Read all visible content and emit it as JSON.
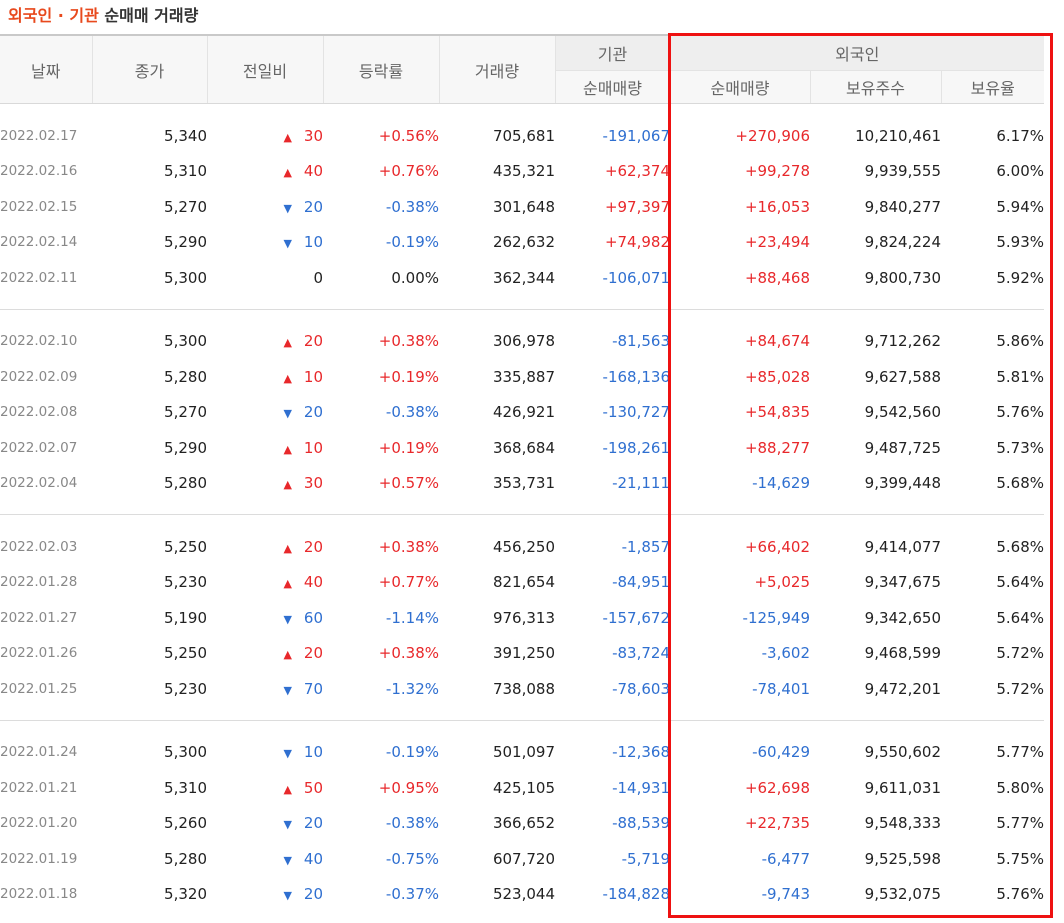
{
  "title": {
    "part1": "외국인 · 기관",
    "part2": "순매매 거래량"
  },
  "headers": {
    "date": "날짜",
    "close": "종가",
    "change": "전일비",
    "rate": "등락률",
    "volume": "거래량",
    "inst_group": "기관",
    "inst_net": "순매매량",
    "foreign_group": "외국인",
    "foreign_net": "순매매량",
    "foreign_hold": "보유주수",
    "foreign_ratio": "보유율"
  },
  "colors": {
    "up": "#e8282b",
    "down": "#2f6fd0",
    "highlight": "#ee1111",
    "title_accent": "#e8491d"
  },
  "rows": [
    {
      "date": "2022.02.17",
      "close": "5,340",
      "dir": "up",
      "change": "30",
      "rate": "+0.56%",
      "volume": "705,681",
      "inst": "-191,067",
      "fnet": "+270,906",
      "fhold": "10,210,461",
      "fratio": "6.17%"
    },
    {
      "date": "2022.02.16",
      "close": "5,310",
      "dir": "up",
      "change": "40",
      "rate": "+0.76%",
      "volume": "435,321",
      "inst": "+62,374",
      "fnet": "+99,278",
      "fhold": "9,939,555",
      "fratio": "6.00%"
    },
    {
      "date": "2022.02.15",
      "close": "5,270",
      "dir": "down",
      "change": "20",
      "rate": "-0.38%",
      "volume": "301,648",
      "inst": "+97,397",
      "fnet": "+16,053",
      "fhold": "9,840,277",
      "fratio": "5.94%"
    },
    {
      "date": "2022.02.14",
      "close": "5,290",
      "dir": "down",
      "change": "10",
      "rate": "-0.19%",
      "volume": "262,632",
      "inst": "+74,982",
      "fnet": "+23,494",
      "fhold": "9,824,224",
      "fratio": "5.93%"
    },
    {
      "date": "2022.02.11",
      "close": "5,300",
      "dir": "none",
      "change": "0",
      "rate": "0.00%",
      "volume": "362,344",
      "inst": "-106,071",
      "fnet": "+88,468",
      "fhold": "9,800,730",
      "fratio": "5.92%"
    },
    {
      "date": "2022.02.10",
      "close": "5,300",
      "dir": "up",
      "change": "20",
      "rate": "+0.38%",
      "volume": "306,978",
      "inst": "-81,563",
      "fnet": "+84,674",
      "fhold": "9,712,262",
      "fratio": "5.86%"
    },
    {
      "date": "2022.02.09",
      "close": "5,280",
      "dir": "up",
      "change": "10",
      "rate": "+0.19%",
      "volume": "335,887",
      "inst": "-168,136",
      "fnet": "+85,028",
      "fhold": "9,627,588",
      "fratio": "5.81%"
    },
    {
      "date": "2022.02.08",
      "close": "5,270",
      "dir": "down",
      "change": "20",
      "rate": "-0.38%",
      "volume": "426,921",
      "inst": "-130,727",
      "fnet": "+54,835",
      "fhold": "9,542,560",
      "fratio": "5.76%"
    },
    {
      "date": "2022.02.07",
      "close": "5,290",
      "dir": "up",
      "change": "10",
      "rate": "+0.19%",
      "volume": "368,684",
      "inst": "-198,261",
      "fnet": "+88,277",
      "fhold": "9,487,725",
      "fratio": "5.73%"
    },
    {
      "date": "2022.02.04",
      "close": "5,280",
      "dir": "up",
      "change": "30",
      "rate": "+0.57%",
      "volume": "353,731",
      "inst": "-21,111",
      "fnet": "-14,629",
      "fhold": "9,399,448",
      "fratio": "5.68%"
    },
    {
      "date": "2022.02.03",
      "close": "5,250",
      "dir": "up",
      "change": "20",
      "rate": "+0.38%",
      "volume": "456,250",
      "inst": "-1,857",
      "fnet": "+66,402",
      "fhold": "9,414,077",
      "fratio": "5.68%"
    },
    {
      "date": "2022.01.28",
      "close": "5,230",
      "dir": "up",
      "change": "40",
      "rate": "+0.77%",
      "volume": "821,654",
      "inst": "-84,951",
      "fnet": "+5,025",
      "fhold": "9,347,675",
      "fratio": "5.64%"
    },
    {
      "date": "2022.01.27",
      "close": "5,190",
      "dir": "down",
      "change": "60",
      "rate": "-1.14%",
      "volume": "976,313",
      "inst": "-157,672",
      "fnet": "-125,949",
      "fhold": "9,342,650",
      "fratio": "5.64%"
    },
    {
      "date": "2022.01.26",
      "close": "5,250",
      "dir": "up",
      "change": "20",
      "rate": "+0.38%",
      "volume": "391,250",
      "inst": "-83,724",
      "fnet": "-3,602",
      "fhold": "9,468,599",
      "fratio": "5.72%"
    },
    {
      "date": "2022.01.25",
      "close": "5,230",
      "dir": "down",
      "change": "70",
      "rate": "-1.32%",
      "volume": "738,088",
      "inst": "-78,603",
      "fnet": "-78,401",
      "fhold": "9,472,201",
      "fratio": "5.72%"
    },
    {
      "date": "2022.01.24",
      "close": "5,300",
      "dir": "down",
      "change": "10",
      "rate": "-0.19%",
      "volume": "501,097",
      "inst": "-12,368",
      "fnet": "-60,429",
      "fhold": "9,550,602",
      "fratio": "5.77%"
    },
    {
      "date": "2022.01.21",
      "close": "5,310",
      "dir": "up",
      "change": "50",
      "rate": "+0.95%",
      "volume": "425,105",
      "inst": "-14,931",
      "fnet": "+62,698",
      "fhold": "9,611,031",
      "fratio": "5.80%"
    },
    {
      "date": "2022.01.20",
      "close": "5,260",
      "dir": "down",
      "change": "20",
      "rate": "-0.38%",
      "volume": "366,652",
      "inst": "-88,539",
      "fnet": "+22,735",
      "fhold": "9,548,333",
      "fratio": "5.77%"
    },
    {
      "date": "2022.01.19",
      "close": "5,280",
      "dir": "down",
      "change": "40",
      "rate": "-0.75%",
      "volume": "607,720",
      "inst": "-5,719",
      "fnet": "-6,477",
      "fhold": "9,525,598",
      "fratio": "5.75%"
    },
    {
      "date": "2022.01.18",
      "close": "5,320",
      "dir": "down",
      "change": "20",
      "rate": "-0.37%",
      "volume": "523,044",
      "inst": "-184,828",
      "fnet": "-9,743",
      "fhold": "9,532,075",
      "fratio": "5.76%"
    }
  ]
}
